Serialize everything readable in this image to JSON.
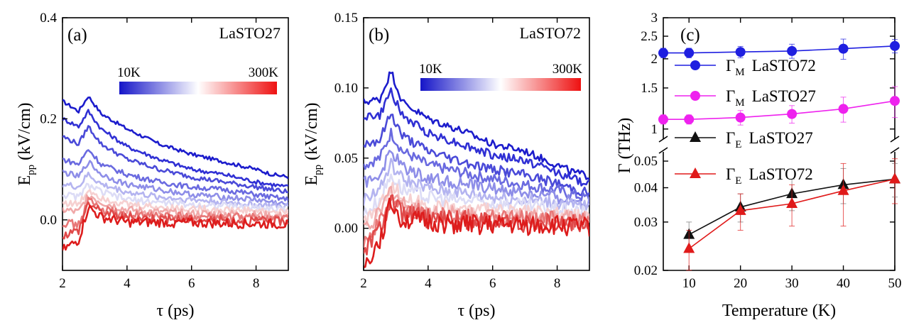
{
  "chart_data": [
    {
      "type": "line",
      "panel_label": "(a)",
      "sample_label": "LaSTO27",
      "xlabel": "τ (ps)",
      "ylabel_main": "E",
      "ylabel_sub": "pp",
      "ylabel_unit": " (kV/cm)",
      "xlim": [
        2,
        9
      ],
      "ylim": [
        -0.1,
        0.4
      ],
      "xticks": [
        2,
        4,
        6,
        8
      ],
      "xtick_labels": [
        "2",
        "4",
        "6",
        "8"
      ],
      "yticks": [
        0.0,
        0.2,
        0.4
      ],
      "ytick_labels": [
        "0.0",
        "0.2",
        "0.4"
      ],
      "colorbar": {
        "min_label": "10K",
        "max_label": "300K",
        "colors": [
          "#1515c8",
          "#ffffff",
          "#ee1111"
        ]
      },
      "series": [
        {
          "name": "10K",
          "color": "#1c1ccc",
          "x": [
            2,
            2.5,
            2.8,
            3.2,
            4,
            5,
            6,
            7,
            8,
            8.5,
            9
          ],
          "y": [
            0.235,
            0.215,
            0.245,
            0.21,
            0.18,
            0.15,
            0.13,
            0.115,
            0.1,
            0.09,
            0.085
          ]
        },
        {
          "name": "25K",
          "color": "#3030d4",
          "x": [
            2,
            2.5,
            2.8,
            3.2,
            4,
            5,
            6,
            7,
            8,
            8.5,
            9
          ],
          "y": [
            0.2,
            0.185,
            0.215,
            0.18,
            0.145,
            0.12,
            0.1,
            0.09,
            0.075,
            0.07,
            0.065
          ]
        },
        {
          "name": "50K",
          "color": "#4a4ad8",
          "x": [
            2,
            2.5,
            2.8,
            3.2,
            4,
            5,
            6,
            7,
            8,
            8.5,
            9
          ],
          "y": [
            0.165,
            0.15,
            0.185,
            0.15,
            0.12,
            0.1,
            0.085,
            0.075,
            0.065,
            0.06,
            0.055
          ]
        },
        {
          "name": "75K",
          "color": "#6a6ae0",
          "x": [
            2,
            2.5,
            2.8,
            3.2,
            4,
            5,
            6,
            7,
            8,
            8.5,
            9
          ],
          "y": [
            0.12,
            0.11,
            0.14,
            0.11,
            0.09,
            0.075,
            0.065,
            0.06,
            0.05,
            0.045,
            0.04
          ]
        },
        {
          "name": "100K",
          "color": "#8e8ee8",
          "x": [
            2,
            2.5,
            2.8,
            3.2,
            4,
            5,
            6,
            7,
            8,
            8.5,
            9
          ],
          "y": [
            0.095,
            0.085,
            0.115,
            0.09,
            0.07,
            0.06,
            0.05,
            0.045,
            0.04,
            0.035,
            0.03
          ]
        },
        {
          "name": "125K",
          "color": "#b4b4f0",
          "x": [
            2,
            2.5,
            2.8,
            3.2,
            4,
            5,
            6,
            7,
            8,
            8.5,
            9
          ],
          "y": [
            0.07,
            0.065,
            0.09,
            0.07,
            0.055,
            0.045,
            0.04,
            0.035,
            0.03,
            0.028,
            0.025
          ]
        },
        {
          "name": "150K",
          "color": "#dcdcf6",
          "x": [
            2,
            2.5,
            2.8,
            3.2,
            4,
            5,
            6,
            7,
            8,
            8.5,
            9
          ],
          "y": [
            0.05,
            0.045,
            0.07,
            0.055,
            0.04,
            0.035,
            0.03,
            0.028,
            0.025,
            0.022,
            0.02
          ]
        },
        {
          "name": "175K",
          "color": "#f6d0d0",
          "x": [
            2,
            2.5,
            2.8,
            3.2,
            4,
            5,
            6,
            7,
            8,
            8.5,
            9
          ],
          "y": [
            0.035,
            0.03,
            0.06,
            0.045,
            0.03,
            0.025,
            0.022,
            0.02,
            0.018,
            0.016,
            0.015
          ]
        },
        {
          "name": "200K",
          "color": "#f0a8a8",
          "x": [
            2,
            2.5,
            2.8,
            3.2,
            4,
            5,
            6,
            7,
            8,
            8.5,
            9
          ],
          "y": [
            0.02,
            0.015,
            0.05,
            0.035,
            0.02,
            0.015,
            0.012,
            0.012,
            0.01,
            0.008,
            0.008
          ]
        },
        {
          "name": "225K",
          "color": "#e87878",
          "x": [
            2,
            2.5,
            2.8,
            3.2,
            4,
            5,
            6,
            7,
            8,
            8.5,
            9
          ],
          "y": [
            -0.005,
            -0.01,
            0.04,
            0.02,
            0.01,
            0.008,
            0.005,
            0.005,
            0.004,
            0.003,
            0.002
          ]
        },
        {
          "name": "250K",
          "color": "#e04a4a",
          "x": [
            2,
            2.5,
            2.8,
            3.2,
            4,
            5,
            6,
            7,
            8,
            8.5,
            9
          ],
          "y": [
            -0.03,
            -0.02,
            0.035,
            0.015,
            0.005,
            0.003,
            0.0,
            0.0,
            -0.002,
            -0.003,
            -0.004
          ]
        },
        {
          "name": "300K",
          "color": "#dd1c1c",
          "x": [
            2,
            2.5,
            2.8,
            3.2,
            4,
            5,
            6,
            7,
            8,
            8.5,
            9
          ],
          "y": [
            -0.06,
            -0.04,
            0.025,
            0.005,
            -0.005,
            -0.005,
            -0.006,
            -0.007,
            -0.008,
            -0.008,
            -0.01
          ]
        }
      ]
    },
    {
      "type": "line",
      "panel_label": "(b)",
      "sample_label": "LaSTO72",
      "xlabel": "τ (ps)",
      "ylabel_main": "E",
      "ylabel_sub": "pp",
      "ylabel_unit": " (kV/cm)",
      "xlim": [
        2,
        9
      ],
      "ylim": [
        -0.03,
        0.15
      ],
      "xticks": [
        2,
        4,
        6,
        8
      ],
      "xtick_labels": [
        "2",
        "4",
        "6",
        "8"
      ],
      "yticks": [
        0.0,
        0.05,
        0.1,
        0.15
      ],
      "ytick_labels": [
        "0.00",
        "0.05",
        "0.10",
        "0.15"
      ],
      "colorbar": {
        "min_label": "10K",
        "max_label": "300K",
        "colors": [
          "#1515c8",
          "#ffffff",
          "#ee1111"
        ]
      },
      "series": [
        {
          "name": "10K",
          "color": "#1c1ccc",
          "x": [
            2,
            2.5,
            2.85,
            3.2,
            4,
            5,
            6,
            7,
            8,
            8.5,
            9
          ],
          "y": [
            0.09,
            0.092,
            0.112,
            0.09,
            0.078,
            0.07,
            0.06,
            0.055,
            0.045,
            0.04,
            0.037
          ]
        },
        {
          "name": "25K",
          "color": "#3030d4",
          "x": [
            2,
            2.5,
            2.85,
            3.2,
            4,
            5,
            6,
            7,
            8,
            8.5,
            9
          ],
          "y": [
            0.08,
            0.08,
            0.098,
            0.08,
            0.068,
            0.06,
            0.052,
            0.048,
            0.04,
            0.035,
            0.032
          ]
        },
        {
          "name": "50K",
          "color": "#4a4ad8",
          "x": [
            2,
            2.5,
            2.85,
            3.2,
            4,
            5,
            6,
            7,
            8,
            8.5,
            9
          ],
          "y": [
            0.06,
            0.063,
            0.082,
            0.066,
            0.055,
            0.048,
            0.042,
            0.038,
            0.032,
            0.028,
            0.025
          ]
        },
        {
          "name": "75K",
          "color": "#6a6ae0",
          "x": [
            2,
            2.5,
            2.85,
            3.2,
            4,
            5,
            6,
            7,
            8,
            8.5,
            9
          ],
          "y": [
            0.045,
            0.05,
            0.068,
            0.055,
            0.045,
            0.04,
            0.035,
            0.031,
            0.027,
            0.024,
            0.021
          ]
        },
        {
          "name": "100K",
          "color": "#8e8ee8",
          "x": [
            2,
            2.5,
            2.85,
            3.2,
            4,
            5,
            6,
            7,
            8,
            8.5,
            9
          ],
          "y": [
            0.032,
            0.038,
            0.055,
            0.044,
            0.036,
            0.032,
            0.028,
            0.025,
            0.022,
            0.02,
            0.018
          ]
        },
        {
          "name": "125K",
          "color": "#b4b4f0",
          "x": [
            2,
            2.5,
            2.85,
            3.2,
            4,
            5,
            6,
            7,
            8,
            8.5,
            9
          ],
          "y": [
            0.02,
            0.028,
            0.045,
            0.035,
            0.028,
            0.025,
            0.022,
            0.02,
            0.018,
            0.016,
            0.015
          ]
        },
        {
          "name": "150K",
          "color": "#dcdcf6",
          "x": [
            2,
            2.5,
            2.85,
            3.2,
            4,
            5,
            6,
            7,
            8,
            8.5,
            9
          ],
          "y": [
            0.01,
            0.02,
            0.038,
            0.028,
            0.022,
            0.02,
            0.018,
            0.016,
            0.014,
            0.012,
            0.011
          ]
        },
        {
          "name": "175K",
          "color": "#f6d0d0",
          "x": [
            2,
            2.5,
            2.85,
            3.2,
            4,
            5,
            6,
            7,
            8,
            8.5,
            9
          ],
          "y": [
            0.005,
            0.015,
            0.032,
            0.022,
            0.016,
            0.014,
            0.012,
            0.011,
            0.01,
            0.009,
            0.008
          ]
        },
        {
          "name": "200K",
          "color": "#f0a8a8",
          "x": [
            2,
            2.5,
            2.85,
            3.2,
            4,
            5,
            6,
            7,
            8,
            8.5,
            9
          ],
          "y": [
            0.0,
            0.01,
            0.028,
            0.018,
            0.012,
            0.01,
            0.009,
            0.008,
            0.008,
            0.007,
            0.006
          ]
        },
        {
          "name": "225K",
          "color": "#e87878",
          "x": [
            2,
            2.5,
            2.85,
            3.2,
            4,
            5,
            6,
            7,
            8,
            8.5,
            9
          ],
          "y": [
            -0.008,
            0.004,
            0.024,
            0.014,
            0.01,
            0.008,
            0.007,
            0.006,
            0.006,
            0.005,
            0.005
          ]
        },
        {
          "name": "250K",
          "color": "#e04a4a",
          "x": [
            2,
            2.5,
            2.85,
            3.2,
            4,
            5,
            6,
            7,
            8,
            8.5,
            9
          ],
          "y": [
            -0.015,
            -0.002,
            0.02,
            0.01,
            0.007,
            0.006,
            0.005,
            0.004,
            0.004,
            0.003,
            0.003
          ]
        },
        {
          "name": "300K",
          "color": "#dd1c1c",
          "x": [
            2,
            2.5,
            2.85,
            3.2,
            4,
            5,
            6,
            7,
            8,
            8.5,
            9
          ],
          "y": [
            -0.028,
            -0.008,
            0.018,
            0.006,
            0.004,
            0.003,
            0.002,
            0.002,
            0.002,
            0.001,
            0.001
          ]
        }
      ]
    },
    {
      "type": "scatter",
      "panel_label": "(c)",
      "xlabel": "Temperature (K)",
      "ylabel": "Γ (THz)",
      "xlim": [
        5,
        50
      ],
      "xticks": [
        10,
        20,
        30,
        40,
        50
      ],
      "xtick_labels": [
        "10",
        "20",
        "30",
        "40",
        "50"
      ],
      "yscale": "log",
      "upper_segment": {
        "ylim": [
          0.85,
          3.0
        ],
        "yticks": [
          1,
          1.5,
          2,
          2.5,
          3
        ],
        "ytick_labels": [
          "1",
          "1.5",
          "2",
          "2.5",
          "3"
        ]
      },
      "lower_segment": {
        "ylim": [
          0.02,
          0.057
        ],
        "yticks": [
          0.02,
          0.03,
          0.04,
          0.05
        ],
        "ytick_labels": [
          "0.02",
          "0.03",
          "0.04",
          "0.05"
        ]
      },
      "series": [
        {
          "name": "LaSTO72",
          "symbol": "Γ",
          "sub": "M",
          "marker": "circle",
          "color": "#1f1fe0",
          "segment": "upper",
          "x": [
            5,
            10,
            20,
            30,
            40,
            50
          ],
          "y": [
            2.12,
            2.12,
            2.14,
            2.16,
            2.21,
            2.27
          ],
          "err": [
            0.1,
            0.1,
            0.12,
            0.15,
            0.22,
            0.15
          ]
        },
        {
          "name": "LaSTO27",
          "symbol": "Γ",
          "sub": "M",
          "marker": "circle",
          "color": "#ee22ee",
          "segment": "upper",
          "x": [
            5,
            10,
            20,
            30,
            40,
            50
          ],
          "y": [
            1.1,
            1.1,
            1.12,
            1.16,
            1.22,
            1.32
          ],
          "err": [
            0.05,
            0.05,
            0.08,
            0.1,
            0.15,
            0.2
          ]
        },
        {
          "name": "LaSTO27",
          "symbol": "Γ",
          "sub": "E",
          "marker": "triangle",
          "color": "#111111",
          "segment": "lower",
          "x": [
            10,
            20,
            30,
            40,
            50
          ],
          "y": [
            0.027,
            0.034,
            0.038,
            0.041,
            0.043
          ],
          "err": [
            0.003,
            0.004,
            0.005,
            0.006,
            0.006
          ]
        },
        {
          "name": "LaSTO72",
          "symbol": "Γ",
          "sub": "E",
          "marker": "triangle",
          "color": "#e01a1a",
          "segment": "lower",
          "x": [
            10,
            20,
            30,
            40,
            50
          ],
          "y": [
            0.024,
            0.033,
            0.035,
            0.039,
            0.043
          ],
          "err": [
            0.004,
            0.005,
            0.006,
            0.01,
            0.008
          ]
        }
      ]
    }
  ]
}
